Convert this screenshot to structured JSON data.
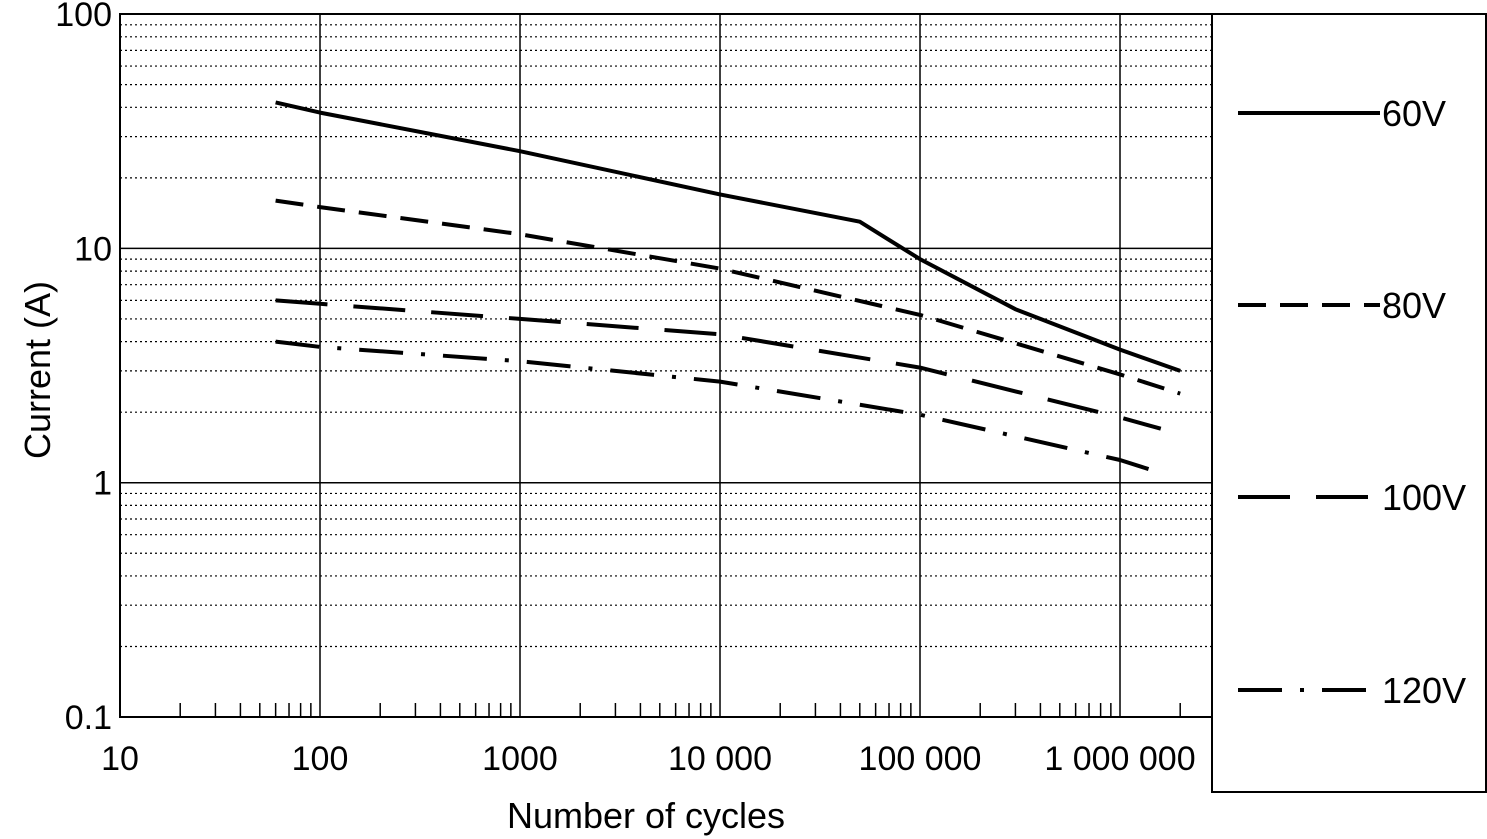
{
  "chart_data": {
    "type": "line",
    "title": "",
    "xlabel": "Number of cycles",
    "ylabel": "Current (A)",
    "x_scale": "log",
    "y_scale": "log",
    "xlim": [
      10,
      2000000
    ],
    "ylim": [
      0.1,
      100
    ],
    "x_ticks": [
      {
        "value": 10,
        "label": "10"
      },
      {
        "value": 100,
        "label": "100"
      },
      {
        "value": 1000,
        "label": "1000"
      },
      {
        "value": 10000,
        "label": "10 000"
      },
      {
        "value": 100000,
        "label": "100 000"
      },
      {
        "value": 1000000,
        "label": "1 000 000"
      }
    ],
    "y_ticks": [
      {
        "value": 100,
        "label": "100"
      },
      {
        "value": 10,
        "label": "10"
      },
      {
        "value": 1,
        "label": "1"
      },
      {
        "value": 0.1,
        "label": "0.1"
      }
    ],
    "grid": true,
    "legend_position": "right",
    "series": [
      {
        "name": "60V",
        "dash": "solid",
        "x": [
          60,
          100,
          1000,
          10000,
          50000,
          100000,
          300000,
          1000000,
          2000000
        ],
        "y": [
          42,
          38,
          26,
          17,
          13,
          9,
          5.5,
          3.7,
          3.0
        ]
      },
      {
        "name": "80V",
        "dash": "dash",
        "x": [
          60,
          100,
          1000,
          10000,
          100000,
          1000000,
          2000000
        ],
        "y": [
          16,
          15,
          11.5,
          8.2,
          5.2,
          2.9,
          2.4
        ]
      },
      {
        "name": "100V",
        "dash": "longdash",
        "x": [
          60,
          100,
          1000,
          10000,
          100000,
          1000000,
          1600000
        ],
        "y": [
          6,
          5.8,
          5.0,
          4.3,
          3.1,
          1.9,
          1.7
        ]
      },
      {
        "name": "120V",
        "dash": "dashdot",
        "x": [
          60,
          100,
          1000,
          10000,
          100000,
          1000000,
          1600000
        ],
        "y": [
          4.0,
          3.8,
          3.3,
          2.7,
          1.95,
          1.25,
          1.1
        ]
      }
    ]
  }
}
